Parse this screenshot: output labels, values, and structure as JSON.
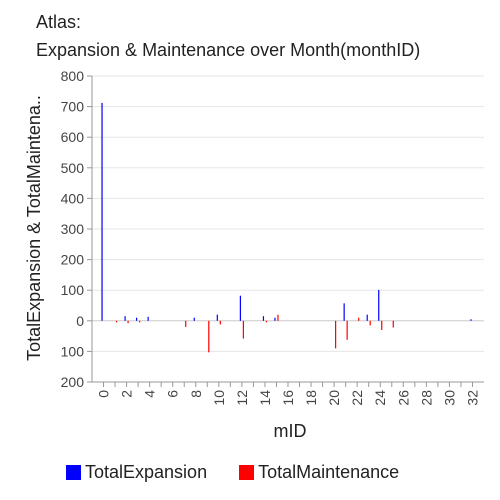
{
  "header": {
    "app_label": "Atlas:",
    "chart_title": "Expansion & Maintenance over Month(monthID)"
  },
  "chart_data": {
    "type": "bar",
    "title": "Expansion & Maintenance over Month(monthID)",
    "xlabel": "mID",
    "ylabel": "TotalExpansion & TotalMaintena..",
    "xlim": [
      -1,
      33
    ],
    "ylim": [
      -200,
      800
    ],
    "x_ticks": [
      0,
      2,
      4,
      6,
      8,
      10,
      12,
      14,
      16,
      18,
      20,
      22,
      24,
      26,
      28,
      30,
      32
    ],
    "y_ticks": [
      {
        "value": 800,
        "label": "800"
      },
      {
        "value": 700,
        "label": "700"
      },
      {
        "value": 600,
        "label": "600"
      },
      {
        "value": 500,
        "label": "500"
      },
      {
        "value": 400,
        "label": "400"
      },
      {
        "value": 300,
        "label": "300"
      },
      {
        "value": 200,
        "label": "200"
      },
      {
        "value": 100,
        "label": "100"
      },
      {
        "value": 0,
        "label": "0"
      },
      {
        "value": -100,
        "label": "100"
      },
      {
        "value": -200,
        "label": "200"
      }
    ],
    "legend_position": "bottom",
    "series": [
      {
        "name": "TotalExpansion",
        "color": "#0000ff",
        "points": [
          {
            "x": 0,
            "y": 712
          },
          {
            "x": 2,
            "y": 15
          },
          {
            "x": 3,
            "y": 10
          },
          {
            "x": 4,
            "y": 13
          },
          {
            "x": 8,
            "y": 10
          },
          {
            "x": 10,
            "y": 20
          },
          {
            "x": 12,
            "y": 82
          },
          {
            "x": 14,
            "y": 15
          },
          {
            "x": 15,
            "y": 10
          },
          {
            "x": 21,
            "y": 57
          },
          {
            "x": 23,
            "y": 20
          },
          {
            "x": 24,
            "y": 101
          },
          {
            "x": 32,
            "y": 5
          }
        ]
      },
      {
        "name": "TotalMaintenance",
        "color": "#ff0000",
        "points": [
          {
            "x": 1,
            "y": -5
          },
          {
            "x": 2,
            "y": -8
          },
          {
            "x": 3,
            "y": -5
          },
          {
            "x": 7,
            "y": -20
          },
          {
            "x": 9,
            "y": -103
          },
          {
            "x": 10,
            "y": -12
          },
          {
            "x": 12,
            "y": -58
          },
          {
            "x": 14,
            "y": -5
          },
          {
            "x": 15,
            "y": 20
          },
          {
            "x": 20,
            "y": -90
          },
          {
            "x": 21,
            "y": -62
          },
          {
            "x": 22,
            "y": 10
          },
          {
            "x": 23,
            "y": -15
          },
          {
            "x": 24,
            "y": -30
          },
          {
            "x": 25,
            "y": -22
          }
        ]
      }
    ]
  }
}
